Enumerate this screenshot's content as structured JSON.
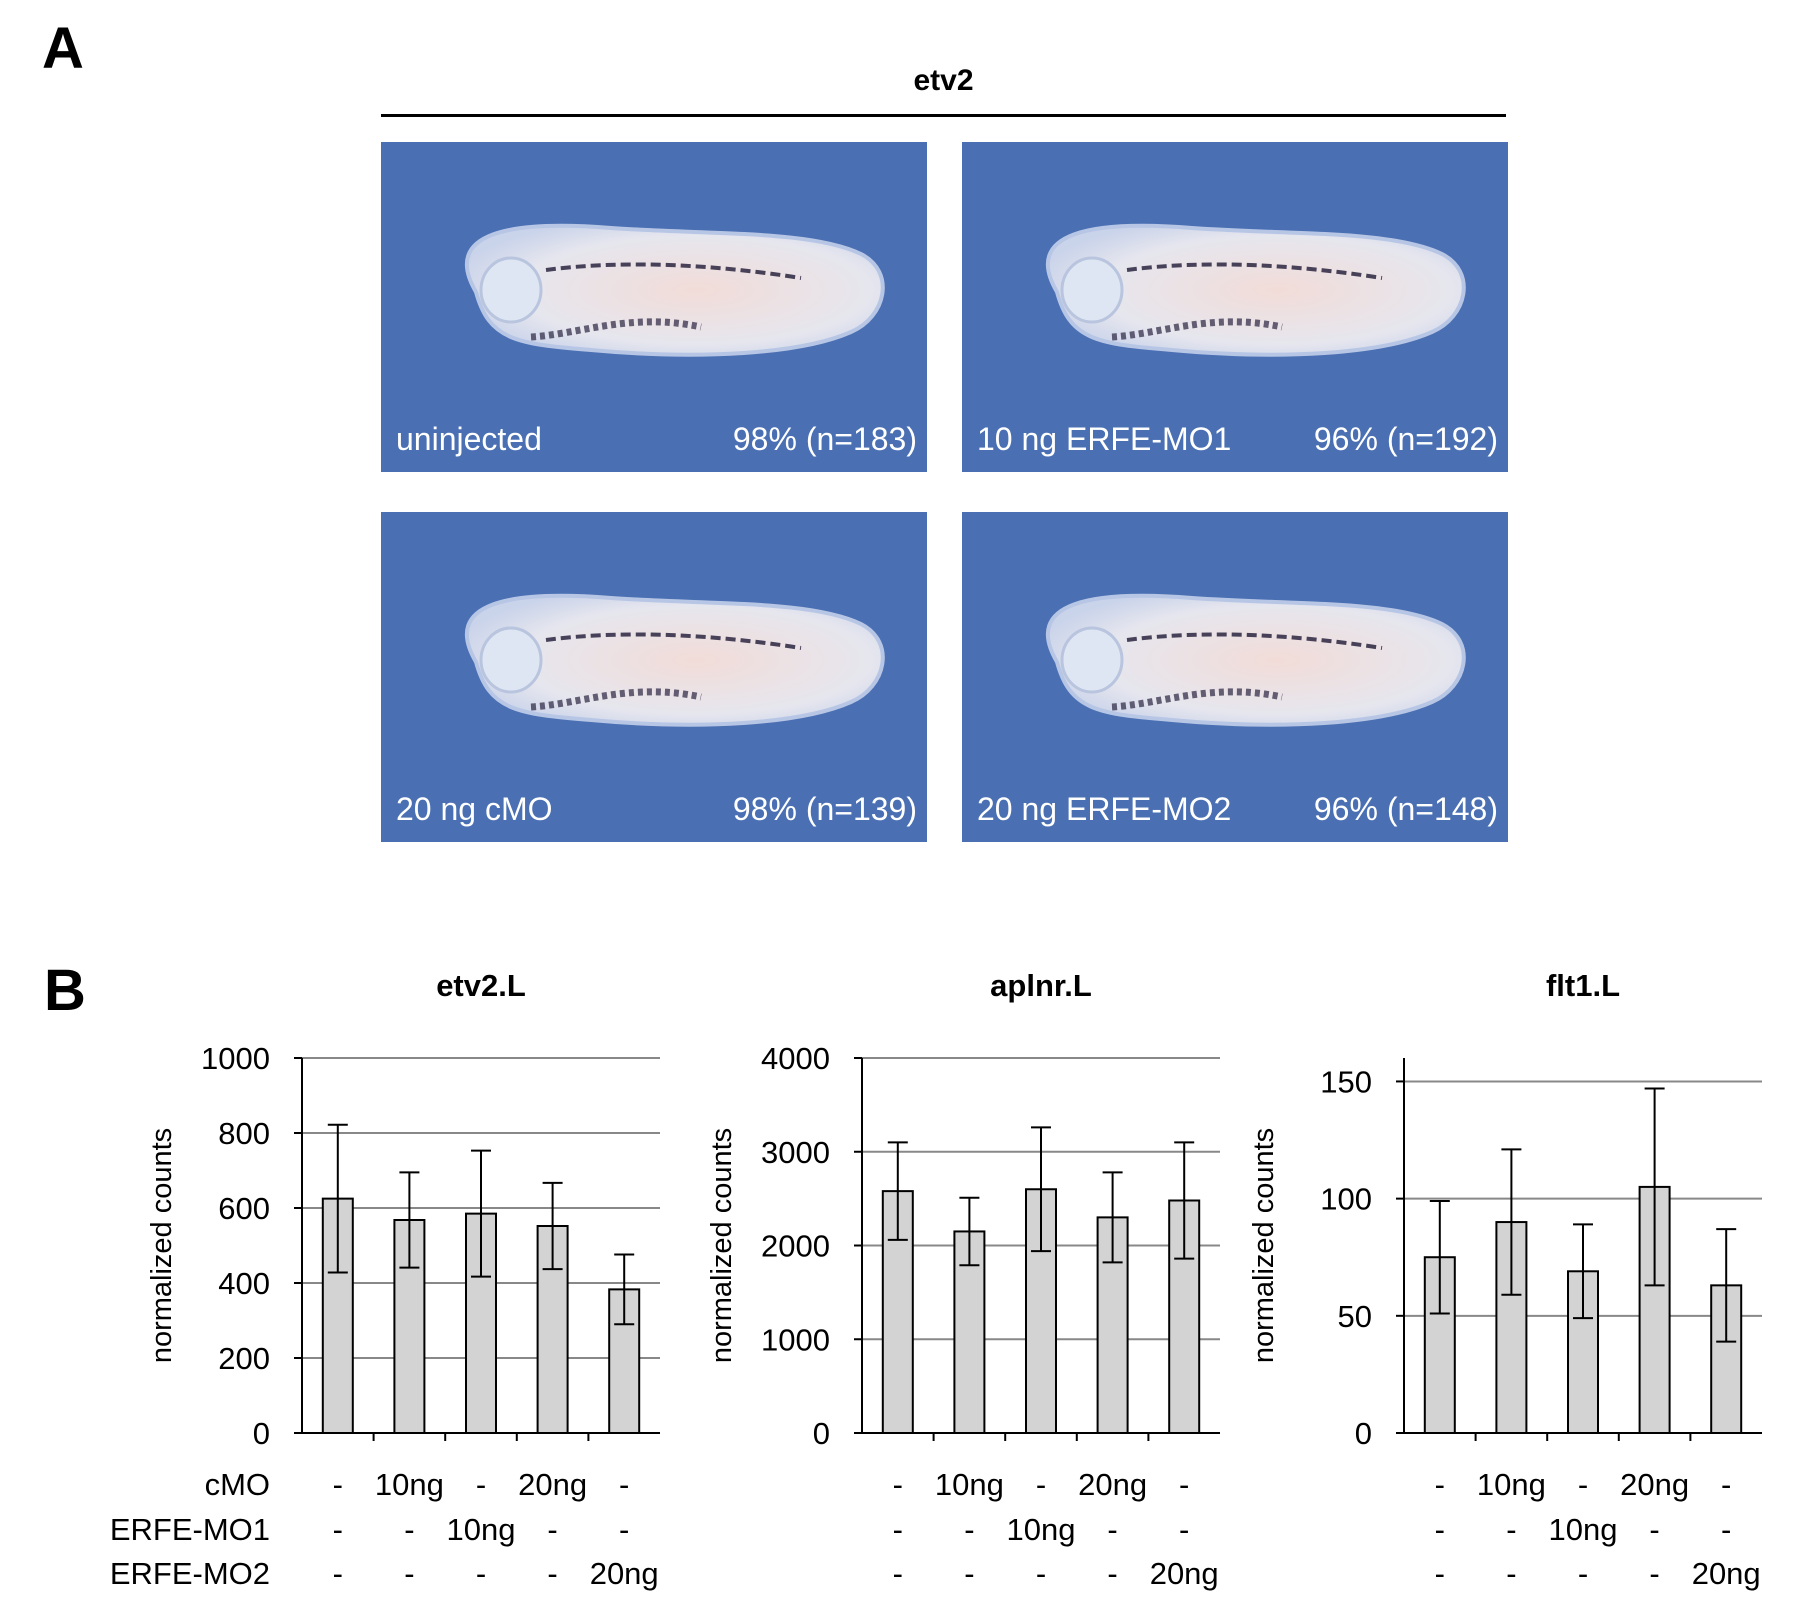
{
  "panel_a": {
    "letter": "A",
    "gene_label": "etv2",
    "images": [
      {
        "condition": "uninjected",
        "percent": "98% (n=183)"
      },
      {
        "condition": "10 ng ERFE-MO1",
        "percent": "96% (n=192)"
      },
      {
        "condition": "20 ng cMO",
        "percent": "98% (n=139)"
      },
      {
        "condition": "20 ng ERFE-MO2",
        "percent": "96% (n=148)"
      }
    ],
    "colors": {
      "background": "#4a70b3",
      "embryo": "#e6e6ee",
      "stain": "#2a2440"
    }
  },
  "panel_b": {
    "letter": "B",
    "row_labels": [
      "cMO",
      "ERFE-MO1",
      "ERFE-MO2"
    ],
    "condition_rows": [
      [
        "-",
        "10ng",
        "-",
        "20ng",
        "-"
      ],
      [
        "-",
        "-",
        "10ng",
        "-",
        "-"
      ],
      [
        "-",
        "-",
        "-",
        "-",
        "20ng"
      ]
    ],
    "colors": {
      "bar_fill": "#d3d3d3",
      "bar_stroke": "#000000",
      "grid": "#888888"
    }
  },
  "chart_data": [
    {
      "type": "bar",
      "title": "etv2.L",
      "ylabel": "normalized counts",
      "ylim": [
        0,
        1000
      ],
      "yticks": [
        0,
        200,
        400,
        600,
        800,
        1000
      ],
      "grid": true,
      "values": [
        625,
        568,
        585,
        552,
        383
      ],
      "errors": [
        197,
        127,
        168,
        115,
        93
      ]
    },
    {
      "type": "bar",
      "title": "aplnr.L",
      "ylabel": "normalized counts",
      "ylim": [
        0,
        4000
      ],
      "yticks": [
        0,
        1000,
        2000,
        3000,
        4000
      ],
      "grid": true,
      "values": [
        2580,
        2150,
        2600,
        2300,
        2480
      ],
      "errors": [
        520,
        360,
        660,
        480,
        620
      ]
    },
    {
      "type": "bar",
      "title": "flt1.L",
      "ylabel": "normalized counts",
      "ylim": [
        0,
        160
      ],
      "yticks": [
        0,
        50,
        100,
        150
      ],
      "grid": true,
      "values": [
        75,
        90,
        69,
        105,
        63
      ],
      "errors": [
        24,
        31,
        20,
        42,
        24
      ]
    }
  ]
}
